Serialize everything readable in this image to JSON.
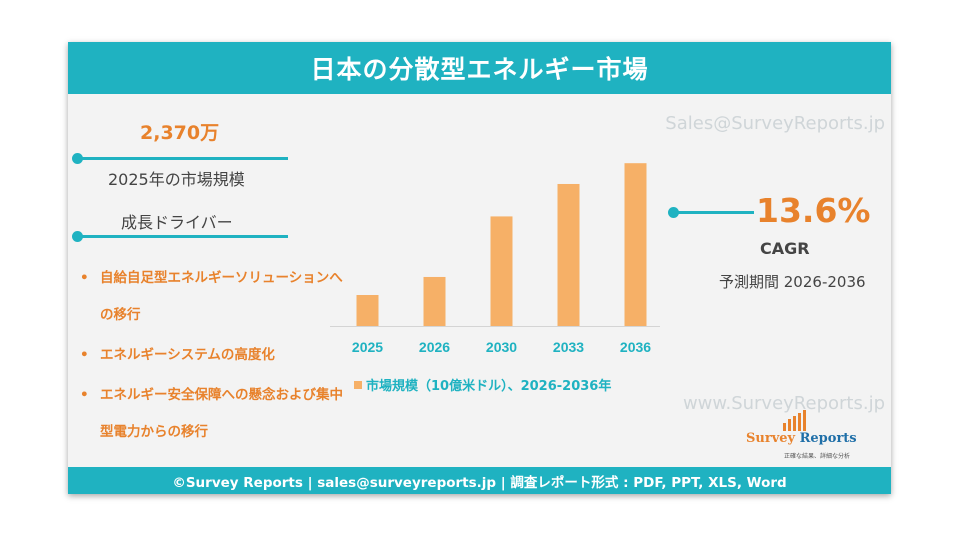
{
  "header": {
    "title": "日本の分散型エネルギー市場"
  },
  "watermarks": {
    "top": "Sales@SurveyReports.jp",
    "bottom": "www.SurveyReports.jp"
  },
  "market": {
    "value": "2,370万",
    "label": "2025年の市場規模"
  },
  "drivers": {
    "title": "成長ドライバー",
    "items": [
      "自給自足型エネルギーソリューションへの移行",
      "エネルギーシステムの高度化",
      "エネルギー安全保障への懸念および集中型電力からの移行"
    ]
  },
  "cagr": {
    "value": "13.6%",
    "label": "CAGR",
    "forecast": "予測期間 2026-2036"
  },
  "logo": {
    "name_first": "Survey",
    "name_second": " Reports",
    "tagline": "正確な結果、詳細な分析"
  },
  "footer": {
    "text": "©Survey Reports | sales@surveyreports.jp |  調査レポート形式 : PDF, PPT, XLS, Word"
  },
  "colors": {
    "accent_teal": "#1fb2c1",
    "accent_orange": "#e8822c",
    "bar": "#f6b067"
  },
  "chart_data": {
    "type": "bar",
    "categories": [
      "2025",
      "2026",
      "2030",
      "2033",
      "2036"
    ],
    "values": [
      23.7,
      37.5,
      83.8,
      108.6,
      124.5
    ],
    "ylim": [
      0,
      130
    ],
    "legend": "市場規模（10億米ドル）、2026-2036年",
    "grid": false
  }
}
